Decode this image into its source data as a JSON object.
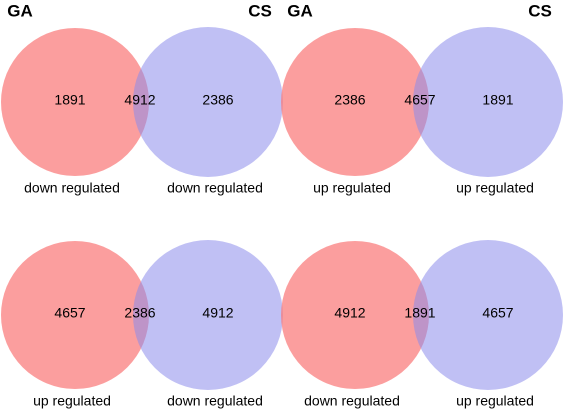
{
  "panels": [
    {
      "set_labels": [
        "GA",
        "CS"
      ],
      "counts": [
        1891,
        4912,
        2386
      ],
      "captions": [
        "down regulated",
        "down regulated"
      ]
    },
    {
      "set_labels": [
        "GA",
        "CS"
      ],
      "counts": [
        2386,
        4657,
        1891
      ],
      "captions": [
        "up regulated",
        "up regulated"
      ]
    },
    {
      "counts": [
        4657,
        2386,
        4912
      ],
      "captions": [
        "up regulated",
        "down regulated"
      ]
    },
    {
      "counts": [
        4912,
        1891,
        4657
      ],
      "captions": [
        "down regulated",
        "up regulated"
      ]
    }
  ]
}
